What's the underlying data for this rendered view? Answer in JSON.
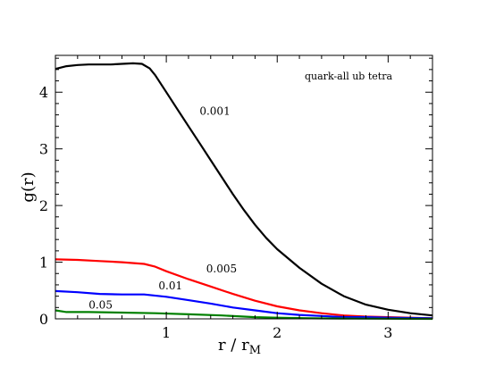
{
  "chart_data": {
    "type": "line",
    "title": "",
    "annotation": "quark-all ub tetra",
    "xlabel": {
      "main": "r / r",
      "subscript": "M"
    },
    "ylabel": "g(r)",
    "xlim": [
      0.0,
      3.4
    ],
    "ylim": [
      0.0,
      4.65
    ],
    "x_ticks": [
      1,
      2,
      3
    ],
    "y_ticks": [
      0,
      1,
      2,
      3,
      4
    ],
    "x_minor_step": 0.2,
    "y_minor_step": 0.2,
    "grid": false,
    "series": [
      {
        "name": "0.001",
        "color": "#000000",
        "label_at": [
          1.3,
          3.6
        ],
        "points": [
          [
            0.0,
            4.41
          ],
          [
            0.1,
            4.46
          ],
          [
            0.2,
            4.48
          ],
          [
            0.3,
            4.49
          ],
          [
            0.4,
            4.49
          ],
          [
            0.5,
            4.49
          ],
          [
            0.6,
            4.5
          ],
          [
            0.7,
            4.51
          ],
          [
            0.78,
            4.5
          ],
          [
            0.85,
            4.42
          ],
          [
            0.9,
            4.3
          ],
          [
            1.0,
            4.0
          ],
          [
            1.1,
            3.7
          ],
          [
            1.2,
            3.4
          ],
          [
            1.3,
            3.1
          ],
          [
            1.4,
            2.8
          ],
          [
            1.5,
            2.5
          ],
          [
            1.6,
            2.2
          ],
          [
            1.7,
            1.92
          ],
          [
            1.8,
            1.66
          ],
          [
            1.9,
            1.43
          ],
          [
            2.0,
            1.23
          ],
          [
            2.2,
            0.9
          ],
          [
            2.4,
            0.62
          ],
          [
            2.6,
            0.4
          ],
          [
            2.8,
            0.25
          ],
          [
            3.0,
            0.16
          ],
          [
            3.2,
            0.1
          ],
          [
            3.4,
            0.06
          ]
        ]
      },
      {
        "name": "0.005",
        "color": "#ff0000",
        "label_at": [
          1.36,
          0.82
        ],
        "points": [
          [
            0.0,
            1.05
          ],
          [
            0.2,
            1.04
          ],
          [
            0.4,
            1.02
          ],
          [
            0.6,
            1.0
          ],
          [
            0.8,
            0.97
          ],
          [
            0.9,
            0.92
          ],
          [
            1.0,
            0.84
          ],
          [
            1.2,
            0.7
          ],
          [
            1.4,
            0.57
          ],
          [
            1.6,
            0.44
          ],
          [
            1.8,
            0.32
          ],
          [
            2.0,
            0.22
          ],
          [
            2.2,
            0.15
          ],
          [
            2.4,
            0.1
          ],
          [
            2.6,
            0.06
          ],
          [
            2.8,
            0.04
          ],
          [
            3.0,
            0.03
          ],
          [
            3.4,
            0.01
          ]
        ]
      },
      {
        "name": "0.01",
        "color": "#0000ff",
        "label_at": [
          0.93,
          0.52
        ],
        "points": [
          [
            0.0,
            0.49
          ],
          [
            0.2,
            0.47
          ],
          [
            0.4,
            0.44
          ],
          [
            0.6,
            0.43
          ],
          [
            0.8,
            0.43
          ],
          [
            1.0,
            0.39
          ],
          [
            1.2,
            0.33
          ],
          [
            1.4,
            0.27
          ],
          [
            1.6,
            0.2
          ],
          [
            1.8,
            0.15
          ],
          [
            2.0,
            0.1
          ],
          [
            2.2,
            0.07
          ],
          [
            2.4,
            0.05
          ],
          [
            2.6,
            0.03
          ],
          [
            2.8,
            0.03
          ],
          [
            3.0,
            0.02
          ],
          [
            3.4,
            0.01
          ]
        ]
      },
      {
        "name": "0.05",
        "color": "#008000",
        "label_at": [
          0.3,
          0.18
        ],
        "points": [
          [
            0.0,
            0.15
          ],
          [
            0.1,
            0.12
          ],
          [
            0.3,
            0.12
          ],
          [
            0.6,
            0.11
          ],
          [
            0.9,
            0.1
          ],
          [
            1.2,
            0.08
          ],
          [
            1.5,
            0.06
          ],
          [
            1.8,
            0.03
          ],
          [
            2.0,
            0.02
          ],
          [
            2.3,
            0.01
          ],
          [
            2.7,
            0.005
          ],
          [
            3.4,
            0.0
          ]
        ]
      }
    ]
  }
}
